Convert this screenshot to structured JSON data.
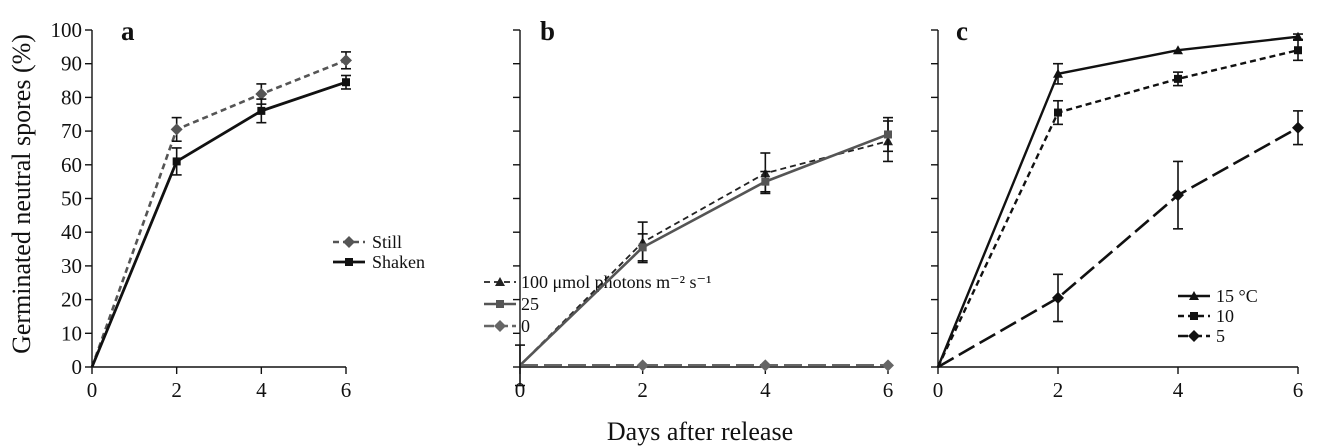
{
  "figure": {
    "ylabel": "Germinated neutral spores (%)",
    "xlabel": "Days after release"
  },
  "chart_data": [
    {
      "type": "line",
      "panel": "a",
      "x": [
        0,
        2,
        4,
        6
      ],
      "xlim": [
        0,
        6
      ],
      "ylim": [
        0,
        100
      ],
      "xticks": [
        0,
        2,
        4,
        6
      ],
      "yticks": [
        0,
        10,
        20,
        30,
        40,
        50,
        60,
        70,
        80,
        90,
        100
      ],
      "legend_position": "center-right",
      "series": [
        {
          "name": "Still",
          "values": [
            0,
            70.5,
            81,
            91
          ],
          "errors": [
            0,
            3.5,
            3,
            2.5
          ],
          "color": "#555555",
          "dash": "short-dash",
          "marker": "diamond",
          "stroke_width": 2.6
        },
        {
          "name": "Shaken",
          "values": [
            0,
            61,
            76,
            84.5
          ],
          "errors": [
            0,
            4,
            3.5,
            2
          ],
          "color": "#111111",
          "dash": "solid",
          "marker": "square",
          "stroke_width": 2.8
        }
      ]
    },
    {
      "type": "line",
      "panel": "b",
      "x": [
        0,
        2,
        4,
        6
      ],
      "xlim": [
        0,
        6
      ],
      "ylim": [
        0,
        100
      ],
      "xticks": [
        0,
        2,
        4,
        6
      ],
      "yticks": [
        0,
        10,
        20,
        30,
        40,
        50,
        60,
        70,
        80,
        90,
        100
      ],
      "legend_position": "bottom-right",
      "series": [
        {
          "name": "100 μmol photons m⁻² s⁻¹",
          "values": [
            0.5,
            37,
            57.5,
            67
          ],
          "errors": [
            0,
            6,
            6,
            6
          ],
          "color": "#222222",
          "dash": "short-dash",
          "marker": "triangle",
          "stroke_width": 1.8
        },
        {
          "name": "25",
          "values": [
            0.5,
            35.5,
            55,
            69
          ],
          "errors": [
            0,
            4,
            3,
            5
          ],
          "color": "#555555",
          "dash": "solid",
          "marker": "square",
          "stroke_width": 2.6
        },
        {
          "name": "0",
          "values": [
            0.5,
            0.5,
            0.5,
            0.5
          ],
          "errors": [
            6,
            0,
            0,
            0
          ],
          "color": "#666666",
          "dash": "long-dash",
          "marker": "diamond",
          "stroke_width": 2.6
        }
      ]
    },
    {
      "type": "line",
      "panel": "c",
      "x": [
        0,
        2,
        4,
        6
      ],
      "xlim": [
        0,
        6
      ],
      "ylim": [
        0,
        100
      ],
      "xticks": [
        0,
        2,
        4,
        6
      ],
      "yticks": [
        0,
        10,
        20,
        30,
        40,
        50,
        60,
        70,
        80,
        90,
        100
      ],
      "legend_position": "bottom-right",
      "series": [
        {
          "name": "15 °C",
          "values": [
            0,
            87,
            94,
            98
          ],
          "errors": [
            0,
            3,
            0,
            0.8
          ],
          "color": "#111111",
          "dash": "solid",
          "marker": "triangle",
          "stroke_width": 2.4
        },
        {
          "name": "10",
          "values": [
            0,
            75.5,
            85.5,
            94
          ],
          "errors": [
            0,
            3.5,
            2,
            3
          ],
          "color": "#111111",
          "dash": "short-dash",
          "marker": "square",
          "stroke_width": 2.4
        },
        {
          "name": "5",
          "values": [
            0,
            20.5,
            51,
            71
          ],
          "errors": [
            0,
            7,
            10,
            5
          ],
          "color": "#111111",
          "dash": "long-dash",
          "marker": "diamond",
          "stroke_width": 2.6
        }
      ]
    }
  ]
}
